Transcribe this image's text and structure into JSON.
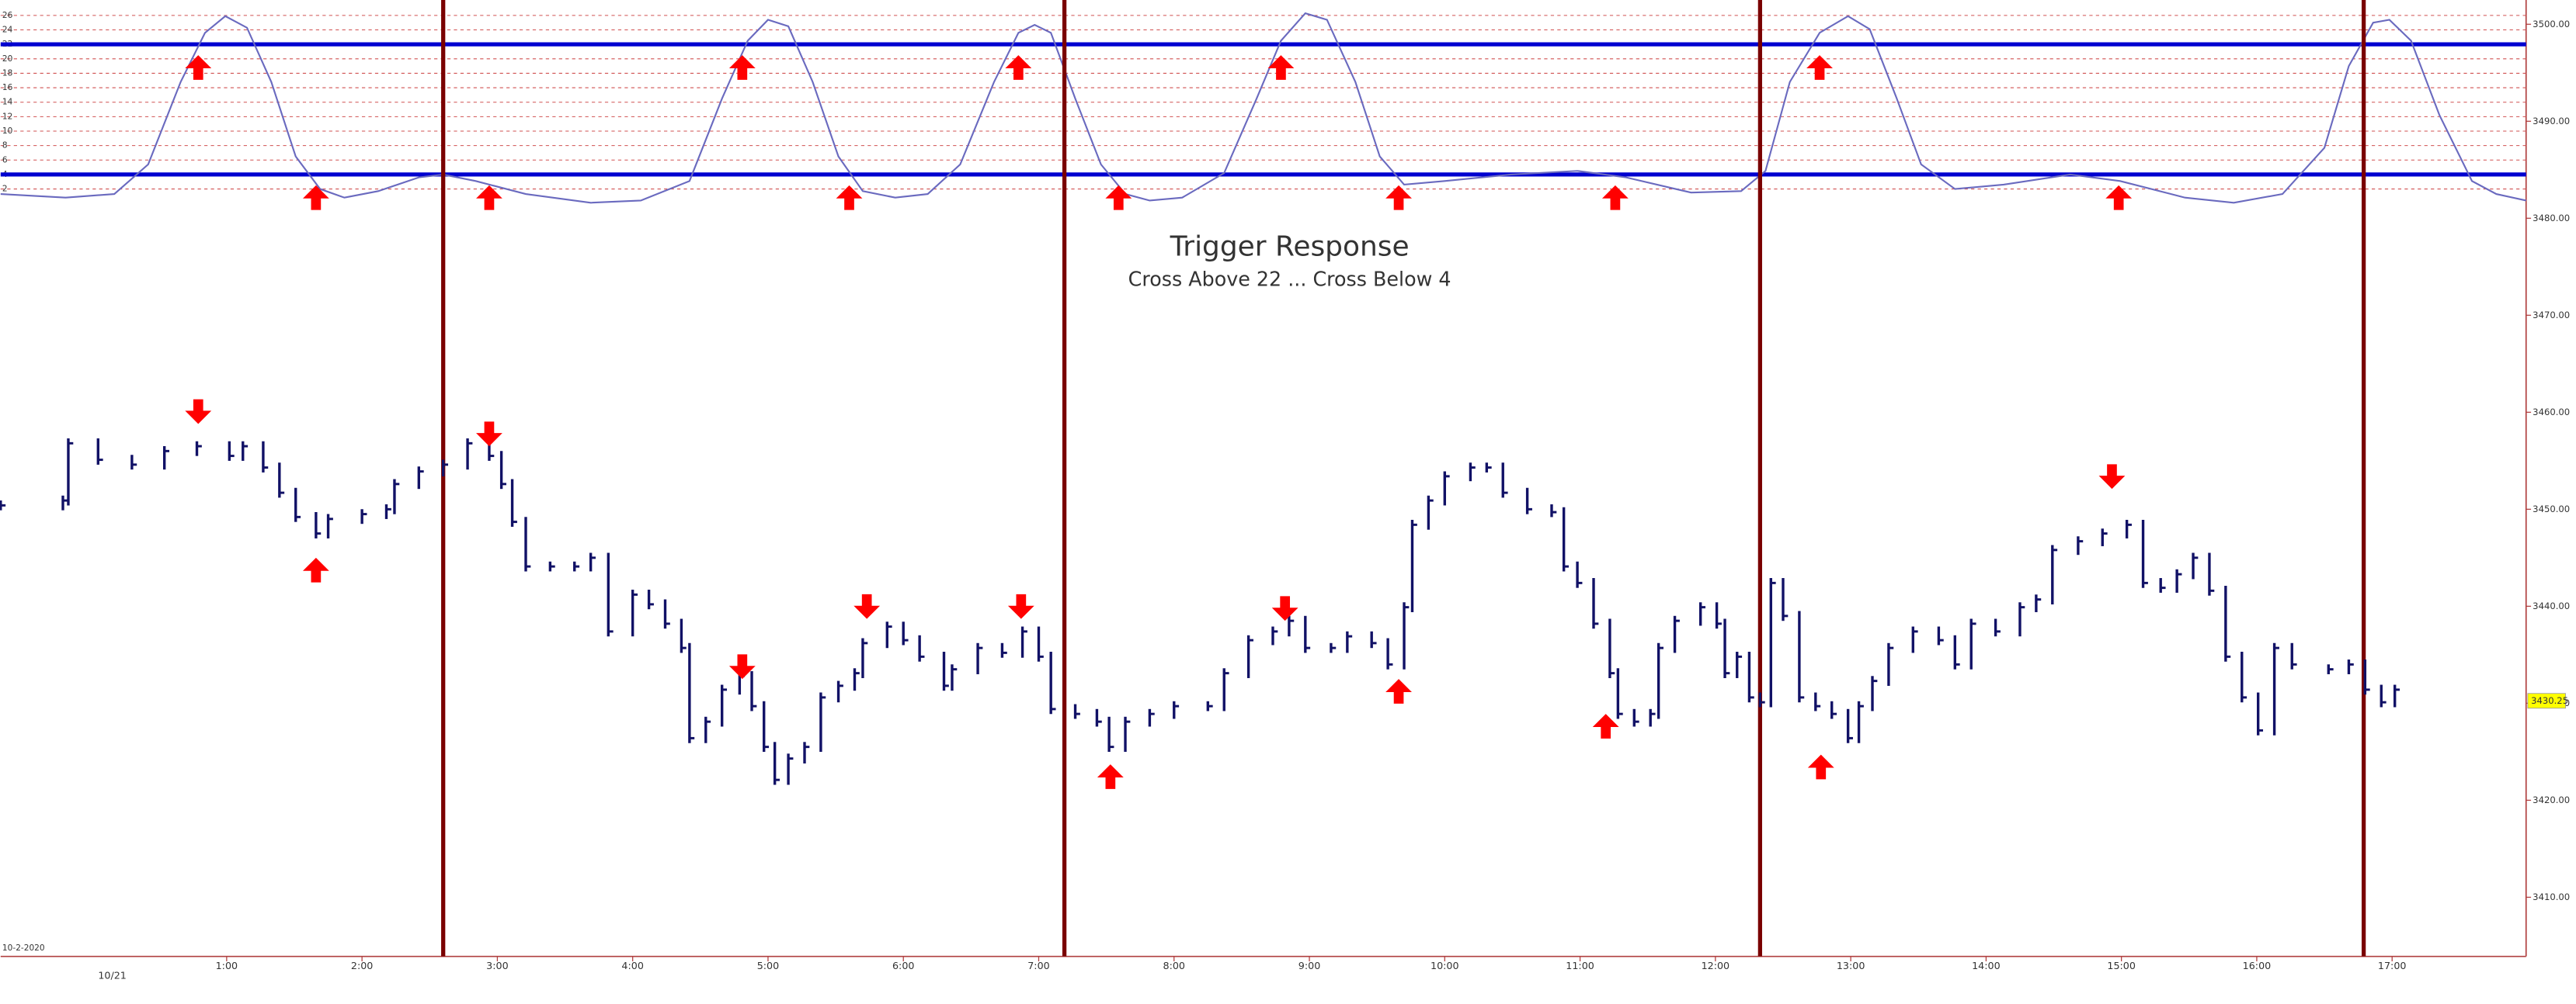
{
  "chart_data": [
    {
      "type": "line",
      "color": "#6a6abf",
      "level_color": "#0000d0",
      "grid": true,
      "levels": [
        22,
        4
      ],
      "ylim": [
        0,
        27
      ],
      "yticks": [
        2,
        4,
        6,
        8,
        10,
        12,
        14,
        16,
        18,
        20,
        22,
        24,
        26
      ],
      "xlim": [
        -0.67,
        17.99
      ],
      "x": [
        -0.67,
        -0.19,
        0.17,
        0.42,
        0.66,
        0.84,
        0.99,
        1.15,
        1.33,
        1.51,
        1.69,
        1.87,
        2.12,
        2.42,
        2.6,
        2.84,
        3.21,
        3.69,
        4.06,
        4.42,
        4.66,
        4.85,
        5.0,
        5.15,
        5.33,
        5.52,
        5.7,
        5.94,
        6.18,
        6.42,
        6.67,
        6.85,
        6.97,
        7.09,
        7.27,
        7.46,
        7.64,
        7.82,
        8.06,
        8.37,
        8.61,
        8.79,
        8.97,
        9.13,
        9.34,
        9.52,
        9.7,
        10.0,
        10.49,
        10.98,
        11.34,
        11.82,
        12.19,
        12.37,
        12.55,
        12.77,
        12.98,
        13.14,
        13.34,
        13.52,
        13.77,
        14.13,
        14.62,
        14.99,
        15.47,
        15.83,
        16.19,
        16.5,
        16.68,
        16.86,
        16.98,
        17.14,
        17.35,
        17.59,
        17.77,
        17.99
      ],
      "values": [
        1.3,
        0.8,
        1.3,
        5.4,
        16.8,
        23.6,
        25.9,
        24.3,
        16.8,
        6.5,
        2.0,
        0.8,
        1.7,
        3.6,
        4.0,
        3.1,
        1.3,
        0.1,
        0.4,
        3.1,
        14.5,
        22.5,
        25.4,
        24.5,
        16.8,
        6.5,
        1.7,
        0.8,
        1.3,
        5.4,
        16.8,
        23.6,
        24.7,
        23.6,
        14.5,
        5.4,
        1.3,
        0.4,
        0.8,
        4.2,
        14.5,
        22.5,
        26.3,
        25.4,
        16.8,
        6.5,
        2.6,
        3.1,
        4.0,
        4.5,
        3.6,
        1.5,
        1.7,
        4.5,
        16.8,
        23.6,
        25.9,
        24.1,
        14.5,
        5.4,
        2.0,
        2.6,
        4.0,
        3.1,
        0.8,
        0.1,
        1.3,
        7.7,
        19.0,
        25.0,
        25.4,
        22.5,
        12.2,
        3.1,
        1.3,
        0.4
      ],
      "markers": [
        {
          "x": 0.79,
          "value": 20.5
        },
        {
          "x": 1.66,
          "value": 2.5
        },
        {
          "x": 2.94,
          "value": 2.5
        },
        {
          "x": 4.81,
          "value": 20.5
        },
        {
          "x": 5.6,
          "value": 2.5
        },
        {
          "x": 6.85,
          "value": 20.5
        },
        {
          "x": 7.59,
          "value": 2.5
        },
        {
          "x": 8.79,
          "value": 20.5
        },
        {
          "x": 9.66,
          "value": 2.5
        },
        {
          "x": 11.26,
          "value": 2.5
        },
        {
          "x": 12.77,
          "value": 20.5
        },
        {
          "x": 14.98,
          "value": 2.5
        }
      ]
    },
    {
      "type": "stock",
      "title": "Trigger Response",
      "subtitle": "Cross Above 22 ... Cross Below 4",
      "color": "#111166",
      "marker_color": "#ff0000",
      "vline_color": "#7a0000",
      "x_caption": "10/21",
      "note": "10-2-2020",
      "last_price": 3430.25,
      "xlim": [
        -0.67,
        17.99
      ],
      "xticks": [
        {
          "value": 1,
          "label": "1:00"
        },
        {
          "value": 2,
          "label": "2:00"
        },
        {
          "value": 3,
          "label": "3:00"
        },
        {
          "value": 4,
          "label": "4:00"
        },
        {
          "value": 5,
          "label": "5:00"
        },
        {
          "value": 6,
          "label": "6:00"
        },
        {
          "value": 7,
          "label": "7:00"
        },
        {
          "value": 8,
          "label": "8:00"
        },
        {
          "value": 9,
          "label": "9:00"
        },
        {
          "value": 10,
          "label": "10:00"
        },
        {
          "value": 11,
          "label": "11:00"
        },
        {
          "value": 12,
          "label": "12:00"
        },
        {
          "value": 13,
          "label": "13:00"
        },
        {
          "value": 14,
          "label": "14:00"
        },
        {
          "value": 15,
          "label": "15:00"
        },
        {
          "value": 16,
          "label": "16:00"
        },
        {
          "value": 17,
          "label": "17:00"
        }
      ],
      "ylim": [
        3403.9,
        3502.5
      ],
      "yticks": [
        {
          "value": 3410,
          "label": "3410.00"
        },
        {
          "value": 3420,
          "label": "3420.00"
        },
        {
          "value": 3430,
          "label": "3430.00"
        },
        {
          "value": 3440,
          "label": "3440.00"
        },
        {
          "value": 3450,
          "label": "3450.00"
        },
        {
          "value": 3460,
          "label": "3460.00"
        },
        {
          "value": 3470,
          "label": "3470.00"
        },
        {
          "value": 3480,
          "label": "3480.00"
        },
        {
          "value": 3490,
          "label": "3490.00"
        },
        {
          "value": 3500,
          "label": "3500.00"
        }
      ],
      "vlines": [
        2.6,
        7.19,
        12.33,
        16.79
      ],
      "x": [
        -0.67,
        -0.21,
        -0.17,
        0.05,
        0.3,
        0.54,
        0.78,
        1.02,
        1.12,
        1.27,
        1.39,
        1.51,
        1.66,
        1.75,
        2.0,
        2.18,
        2.24,
        2.42,
        2.6,
        2.78,
        2.94,
        3.03,
        3.11,
        3.21,
        3.39,
        3.57,
        3.69,
        3.82,
        4.0,
        4.12,
        4.24,
        4.36,
        4.42,
        4.54,
        4.66,
        4.79,
        4.88,
        4.97,
        5.05,
        5.15,
        5.27,
        5.39,
        5.52,
        5.64,
        5.7,
        5.88,
        6.0,
        6.12,
        6.3,
        6.36,
        6.55,
        6.73,
        6.88,
        7.0,
        7.09,
        7.27,
        7.43,
        7.52,
        7.64,
        7.82,
        8.0,
        8.25,
        8.37,
        8.55,
        8.73,
        8.85,
        8.97,
        9.16,
        9.28,
        9.46,
        9.58,
        9.7,
        9.76,
        9.88,
        10.0,
        10.19,
        10.31,
        10.43,
        10.61,
        10.79,
        10.88,
        10.98,
        11.1,
        11.22,
        11.28,
        11.4,
        11.52,
        11.58,
        11.7,
        11.89,
        12.01,
        12.07,
        12.16,
        12.25,
        12.33,
        12.41,
        12.5,
        12.62,
        12.74,
        12.86,
        12.98,
        13.06,
        13.16,
        13.28,
        13.46,
        13.65,
        13.77,
        13.89,
        14.07,
        14.25,
        14.37,
        14.49,
        14.68,
        14.86,
        15.04,
        15.16,
        15.29,
        15.41,
        15.53,
        15.65,
        15.77,
        15.89,
        16.01,
        16.13,
        16.26,
        16.4,
        16.53,
        16.68,
        16.8,
        16.92,
        17.02
      ],
      "values": [
        3450.4,
        3450.9,
        3456.8,
        3455.1,
        3454.6,
        3456.0,
        3456.5,
        3455.5,
        3456.5,
        3454.3,
        3451.7,
        3449.2,
        3447.5,
        3449.0,
        3449.5,
        3450.0,
        3452.6,
        3453.9,
        3454.6,
        3456.8,
        3455.5,
        3452.6,
        3448.7,
        3444.1,
        3444.1,
        3444.1,
        3445.0,
        3437.4,
        3441.2,
        3440.2,
        3438.2,
        3435.7,
        3426.4,
        3428.1,
        3431.4,
        3432.8,
        3429.7,
        3425.5,
        3422.1,
        3424.3,
        3425.5,
        3430.6,
        3431.8,
        3433.1,
        3436.2,
        3437.9,
        3436.5,
        3434.8,
        3431.8,
        3433.5,
        3435.7,
        3435.2,
        3437.4,
        3434.8,
        3429.4,
        3428.9,
        3428.1,
        3425.5,
        3428.1,
        3428.9,
        3429.7,
        3429.7,
        3433.1,
        3436.5,
        3437.4,
        3438.5,
        3435.7,
        3435.7,
        3436.9,
        3436.2,
        3434.0,
        3439.9,
        3448.4,
        3450.9,
        3453.4,
        3454.3,
        3454.3,
        3451.7,
        3450.0,
        3449.7,
        3444.1,
        3442.4,
        3438.2,
        3433.1,
        3428.9,
        3428.1,
        3428.9,
        3435.7,
        3438.5,
        3439.9,
        3438.2,
        3433.1,
        3434.8,
        3430.6,
        3430.1,
        3442.4,
        3439.0,
        3430.6,
        3429.7,
        3428.9,
        3426.4,
        3429.7,
        3432.3,
        3435.7,
        3437.4,
        3436.5,
        3434.0,
        3438.2,
        3437.4,
        3439.9,
        3440.7,
        3445.8,
        3446.7,
        3447.5,
        3448.4,
        3442.4,
        3441.9,
        3443.3,
        3445.0,
        3441.6,
        3434.8,
        3430.6,
        3427.2,
        3435.7,
        3434.0,
        null,
        3433.5,
        3434.0,
        3431.4,
        3430.1,
        3431.4
      ],
      "markers": [
        {
          "x": 0.79,
          "value": 3458.8,
          "direction": "down"
        },
        {
          "x": 2.94,
          "value": 3456.5,
          "direction": "down"
        },
        {
          "x": 4.81,
          "value": 3432.5,
          "direction": "down"
        },
        {
          "x": 5.73,
          "value": 3438.7,
          "direction": "down"
        },
        {
          "x": 6.87,
          "value": 3438.7,
          "direction": "down"
        },
        {
          "x": 8.82,
          "value": 3438.5,
          "direction": "down"
        },
        {
          "x": 14.93,
          "value": 3452.1,
          "direction": "down"
        },
        {
          "x": 1.66,
          "value": 3445.0,
          "direction": "up"
        },
        {
          "x": 7.53,
          "value": 3423.7,
          "direction": "up"
        },
        {
          "x": 9.66,
          "value": 3432.5,
          "direction": "up"
        },
        {
          "x": 11.19,
          "value": 3428.9,
          "direction": "up"
        },
        {
          "x": 12.78,
          "value": 3424.7,
          "direction": "up"
        }
      ]
    }
  ]
}
